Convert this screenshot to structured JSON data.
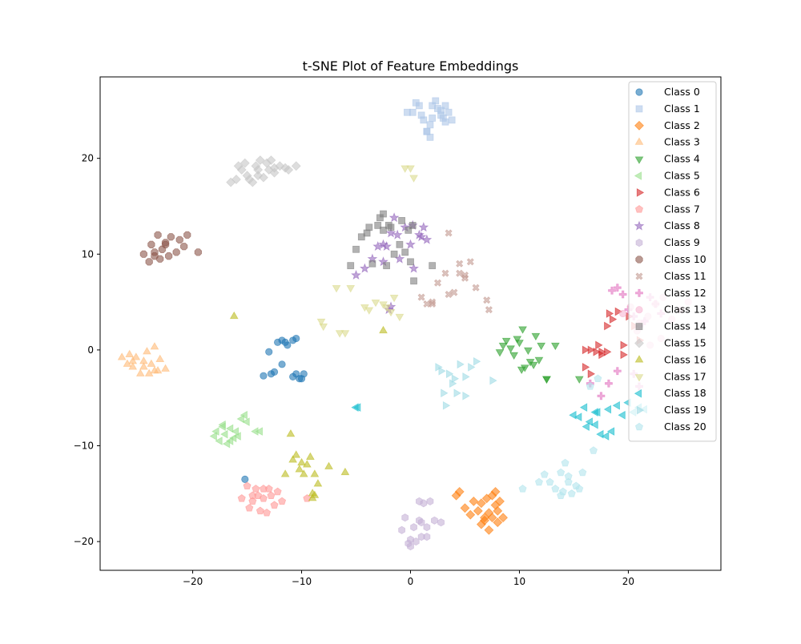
{
  "chart_data": {
    "type": "scatter",
    "title": "t-SNE Plot of Feature Embeddings",
    "xlabel": "",
    "ylabel": "",
    "xlim": [
      -28.5,
      28.5
    ],
    "ylim": [
      -23,
      28.5
    ],
    "xticks": [
      -20,
      -10,
      0,
      10,
      20
    ],
    "yticks": [
      -20,
      -10,
      0,
      10,
      20
    ],
    "grid": false,
    "legend_position": "top-right",
    "series": [
      {
        "name": "Class 0",
        "marker": "circle",
        "color": "#1f77b4",
        "x": [
          -12.8,
          -13.0,
          -12.2,
          -11.8,
          -11.5,
          -11.3,
          -10.8,
          -10.5,
          -13.5,
          -10.5,
          -10.0,
          -9.8,
          -10.8,
          -10.2,
          -12.5,
          -11.8,
          -15.2
        ],
        "y": [
          -2.5,
          -0.2,
          0.8,
          1.0,
          0.8,
          0.5,
          1.0,
          1.2,
          -2.7,
          -2.5,
          -3.0,
          -2.5,
          -2.8,
          -3.0,
          -2.3,
          -1.5,
          -13.5
        ]
      },
      {
        "name": "Class 1",
        "marker": "square",
        "color": "#aec7e8",
        "x": [
          -0.3,
          0.2,
          0.5,
          0.8,
          1.0,
          1.2,
          1.5,
          1.8,
          2.0,
          2.3,
          2.5,
          2.8,
          3.0,
          3.2,
          3.5,
          3.8,
          1.8,
          1.5,
          2.0,
          2.8,
          3.2
        ],
        "y": [
          24.8,
          24.8,
          25.8,
          25.5,
          24.5,
          24.0,
          22.8,
          22.2,
          25.5,
          26.0,
          25.2,
          24.5,
          24.2,
          25.5,
          24.8,
          24.0,
          23.5,
          22.8,
          24.2,
          25.0,
          23.8
        ]
      },
      {
        "name": "Class 2",
        "marker": "diamond",
        "color": "#ff7f0e",
        "x": [
          4.2,
          4.5,
          5.0,
          5.5,
          5.8,
          6.2,
          6.5,
          6.8,
          7.0,
          7.2,
          7.5,
          7.8,
          8.0,
          8.2,
          8.5,
          7.2,
          6.5,
          7.8,
          8.0,
          6.8,
          7.5
        ],
        "y": [
          -15.2,
          -14.8,
          -16.5,
          -17.2,
          -15.8,
          -16.8,
          -18.2,
          -17.5,
          -15.5,
          -18.8,
          -17.5,
          -16.2,
          -18.0,
          -15.8,
          -17.5,
          -17.0,
          -16.0,
          -14.8,
          -16.8,
          -17.8,
          -15.2
        ]
      },
      {
        "name": "Class 3",
        "marker": "triangle-up",
        "color": "#ffbb78",
        "x": [
          -26.5,
          -26.0,
          -25.8,
          -25.5,
          -25.2,
          -24.8,
          -24.5,
          -24.2,
          -24.0,
          -23.8,
          -23.5,
          -23.2,
          -23.0,
          -22.5,
          -25.5,
          -24.5,
          -23.5
        ],
        "y": [
          -0.8,
          -1.5,
          -0.5,
          -1.8,
          -0.8,
          -2.5,
          -1.2,
          -0.2,
          -2.5,
          -1.5,
          0.3,
          -2.2,
          -1.0,
          -2.0,
          -1.2,
          -1.8,
          -2.2
        ]
      },
      {
        "name": "Class 4",
        "marker": "triangle-down",
        "color": "#2ca02c",
        "x": [
          8.2,
          8.5,
          8.8,
          9.2,
          9.5,
          9.8,
          10.0,
          10.3,
          10.5,
          10.8,
          11.0,
          11.3,
          11.5,
          11.8,
          12.0,
          12.5,
          13.3,
          15.5,
          12.5,
          10.2
        ],
        "y": [
          -0.2,
          0.5,
          1.0,
          0.2,
          -0.5,
          1.2,
          0.8,
          2.2,
          -1.8,
          0.0,
          -1.2,
          -1.5,
          1.5,
          -1.0,
          0.5,
          -3.0,
          0.5,
          -3.0,
          -3.0,
          -2.0
        ]
      },
      {
        "name": "Class 5",
        "marker": "triangle-left",
        "color": "#98df8a",
        "x": [
          -18.0,
          -17.8,
          -17.5,
          -17.2,
          -17.0,
          -16.8,
          -16.5,
          -16.2,
          -16.0,
          -15.8,
          -15.5,
          -15.2,
          -15.0,
          -14.2,
          -13.8,
          -16.5,
          -17.2
        ],
        "y": [
          -9.0,
          -8.5,
          -9.5,
          -7.8,
          -8.8,
          -9.8,
          -8.2,
          -9.2,
          -8.5,
          -9.0,
          -7.2,
          -6.8,
          -7.5,
          -8.5,
          -8.5,
          -9.5,
          -8.0
        ]
      },
      {
        "name": "Class 6",
        "marker": "triangle-right",
        "color": "#d62728",
        "x": [
          16.0,
          16.5,
          17.0,
          17.5,
          18.0,
          18.2,
          18.5,
          19.0,
          19.5,
          20.0,
          20.5,
          21.0,
          16.5,
          17.2,
          18.0,
          19.5,
          16.0,
          17.5
        ],
        "y": [
          -1.8,
          0.0,
          -0.2,
          -0.5,
          2.5,
          3.8,
          3.2,
          4.0,
          0.5,
          3.5,
          2.5,
          1.0,
          -2.5,
          0.5,
          -0.2,
          -0.5,
          0.0,
          -0.2
        ]
      },
      {
        "name": "Class 7",
        "marker": "pentagon",
        "color": "#ff9896",
        "x": [
          -15.5,
          -15.0,
          -14.8,
          -14.5,
          -14.2,
          -14.0,
          -13.8,
          -13.5,
          -13.2,
          -13.0,
          -12.8,
          -12.5,
          -12.2,
          -11.8,
          -13.5,
          -14.5,
          -9.5
        ],
        "y": [
          -15.5,
          -14.2,
          -16.5,
          -15.8,
          -14.5,
          -15.2,
          -16.8,
          -15.5,
          -17.0,
          -14.5,
          -15.2,
          -16.2,
          -14.8,
          -15.8,
          -14.5,
          -15.2,
          -15.5
        ]
      },
      {
        "name": "Class 8",
        "marker": "star",
        "color": "#9467bd",
        "x": [
          -5.0,
          -4.2,
          -3.5,
          -3.0,
          -2.5,
          -2.2,
          -1.8,
          -1.5,
          -1.2,
          -1.0,
          -0.5,
          0.0,
          0.3,
          0.8,
          1.0,
          1.2,
          1.5,
          -2.0,
          0.2,
          -1.8,
          -2.5
        ],
        "y": [
          7.8,
          8.5,
          9.5,
          10.8,
          11.0,
          10.8,
          4.5,
          13.8,
          12.0,
          9.5,
          12.8,
          11.0,
          8.5,
          12.0,
          11.8,
          12.8,
          11.5,
          4.2,
          13.0,
          12.2,
          9.2
        ]
      },
      {
        "name": "Class 9",
        "marker": "hexagon",
        "color": "#c5b0d5",
        "x": [
          -0.8,
          -0.5,
          -0.2,
          0.0,
          0.3,
          0.5,
          0.8,
          1.0,
          1.2,
          1.5,
          1.8,
          2.2,
          2.8,
          0.8,
          1.5,
          0.0,
          1.0
        ],
        "y": [
          -18.8,
          -17.5,
          -20.2,
          -19.8,
          -18.5,
          -20.0,
          -17.8,
          -19.5,
          -16.0,
          -18.5,
          -15.8,
          -17.8,
          -18.0,
          -15.8,
          -19.5,
          -20.5,
          -18.0
        ]
      },
      {
        "name": "Class 10",
        "marker": "octagon",
        "color": "#8c564b",
        "x": [
          -24.5,
          -24.0,
          -23.8,
          -23.5,
          -23.2,
          -23.0,
          -22.8,
          -22.5,
          -22.2,
          -22.0,
          -21.5,
          -21.2,
          -20.8,
          -20.5,
          -19.5,
          -23.5,
          -22.5
        ],
        "y": [
          10.0,
          9.2,
          11.0,
          10.2,
          12.0,
          9.5,
          10.5,
          11.2,
          9.8,
          11.8,
          10.2,
          11.5,
          10.8,
          12.0,
          10.2,
          9.8,
          11.0
        ]
      },
      {
        "name": "Class 11",
        "marker": "x",
        "color": "#c49c94",
        "x": [
          1.0,
          1.5,
          2.0,
          2.5,
          3.2,
          3.5,
          4.0,
          4.5,
          5.0,
          5.5,
          6.0,
          7.0,
          7.2,
          3.5,
          4.5,
          5.0,
          2.0
        ],
        "y": [
          5.5,
          4.8,
          4.8,
          7.0,
          8.0,
          12.2,
          6.0,
          9.0,
          7.8,
          9.2,
          6.5,
          5.2,
          4.2,
          5.8,
          8.0,
          7.5,
          5.0
        ]
      },
      {
        "name": "Class 12",
        "marker": "plus",
        "color": "#e377c2",
        "x": [
          18.5,
          19.0,
          19.5,
          20.0,
          20.5,
          21.0,
          21.5,
          22.0,
          22.5,
          23.0,
          19.0,
          20.5,
          17.5,
          18.2,
          16.5,
          21.0
        ],
        "y": [
          6.2,
          6.5,
          5.8,
          4.2,
          3.5,
          2.5,
          3.0,
          5.5,
          4.8,
          3.8,
          -2.2,
          -2.5,
          -4.8,
          -3.5,
          -3.5,
          -3.8
        ]
      },
      {
        "name": "Class 13",
        "marker": "circle",
        "color": "#f7b6d2",
        "x": [
          19.5,
          20.2,
          21.0,
          21.8,
          22.5,
          23.2,
          24.0,
          24.8,
          25.5,
          22.0,
          23.0,
          20.8
        ],
        "y": [
          3.8,
          4.5,
          2.8,
          3.5,
          4.8,
          5.5,
          3.2,
          4.2,
          5.0,
          0.5,
          1.2,
          2.0
        ]
      },
      {
        "name": "Class 14",
        "marker": "square",
        "color": "#7f7f7f",
        "x": [
          -5.5,
          -5.0,
          -4.5,
          -3.8,
          -3.5,
          -3.0,
          -2.8,
          -2.5,
          -2.2,
          -2.0,
          -1.5,
          -1.0,
          -0.8,
          -0.5,
          -0.2,
          0.0,
          0.3,
          -1.8,
          -4.0,
          -2.5,
          2.0,
          0.2
        ],
        "y": [
          8.8,
          10.5,
          11.8,
          12.8,
          9.0,
          13.0,
          13.8,
          14.2,
          8.8,
          13.0,
          10.0,
          11.0,
          13.5,
          10.2,
          12.5,
          9.2,
          7.2,
          12.8,
          12.2,
          12.5,
          8.8,
          13.0
        ]
      },
      {
        "name": "Class 15",
        "marker": "diamond",
        "color": "#c7c7c7",
        "x": [
          -16.0,
          -15.8,
          -15.5,
          -15.2,
          -15.0,
          -14.8,
          -14.5,
          -14.2,
          -14.0,
          -13.8,
          -13.5,
          -13.2,
          -13.0,
          -12.8,
          -12.5,
          -12.0,
          -11.5,
          -11.2,
          -10.5,
          -16.5,
          -14.0,
          -12.5
        ],
        "y": [
          17.8,
          19.2,
          18.8,
          19.5,
          18.2,
          17.8,
          17.5,
          19.2,
          18.8,
          19.8,
          18.0,
          19.5,
          18.8,
          19.8,
          18.5,
          19.2,
          19.0,
          18.8,
          19.2,
          17.5,
          18.2,
          19.0
        ]
      },
      {
        "name": "Class 16",
        "marker": "triangle-up",
        "color": "#bcbd22",
        "x": [
          -16.2,
          -11.0,
          -10.8,
          -10.5,
          -10.2,
          -10.0,
          -9.8,
          -9.5,
          -9.2,
          -9.0,
          -8.8,
          -8.5,
          -7.5,
          -6.0,
          -9.0,
          -8.8,
          -2.5,
          -11.5
        ],
        "y": [
          3.5,
          -8.8,
          -11.5,
          -11.0,
          -12.5,
          -11.8,
          -13.0,
          -12.0,
          -11.2,
          -15.5,
          -13.0,
          -14.0,
          -12.2,
          -12.8,
          -15.0,
          -15.2,
          2.0,
          -13.0
        ]
      },
      {
        "name": "Class 17",
        "marker": "triangle-down",
        "color": "#dbdb8d",
        "x": [
          -8.2,
          -8.0,
          -6.5,
          -6.0,
          -5.5,
          -4.2,
          -3.8,
          -3.2,
          -2.5,
          -2.2,
          -1.8,
          -1.5,
          -1.0,
          -0.5,
          0.0,
          0.3,
          -6.8
        ],
        "y": [
          3.0,
          2.5,
          1.8,
          1.8,
          6.5,
          4.5,
          4.2,
          5.0,
          4.8,
          4.5,
          4.0,
          5.5,
          3.5,
          19.0,
          19.0,
          18.0,
          6.5
        ]
      },
      {
        "name": "Class 18",
        "marker": "triangle-left",
        "color": "#17becf",
        "x": [
          -4.8,
          -5.0,
          15.0,
          15.5,
          16.0,
          16.5,
          17.0,
          17.2,
          17.5,
          18.0,
          18.2,
          18.5,
          19.0,
          19.5,
          20.0,
          20.5,
          21.0,
          16.2,
          17.0,
          21.5
        ],
        "y": [
          -6.0,
          -6.0,
          -6.8,
          -7.0,
          -6.0,
          -7.5,
          -7.8,
          -6.5,
          -8.8,
          -9.0,
          -6.2,
          -8.5,
          -5.8,
          -6.8,
          -5.5,
          -6.5,
          -6.0,
          -8.0,
          -6.5,
          -6.2
        ]
      },
      {
        "name": "Class 19",
        "marker": "triangle-right",
        "color": "#9edae5",
        "x": [
          2.5,
          2.8,
          3.2,
          3.5,
          3.8,
          4.2,
          4.5,
          5.0,
          5.5,
          6.0,
          7.5,
          4.0,
          3.0,
          5.0
        ],
        "y": [
          -1.8,
          -2.2,
          -5.8,
          -2.5,
          -3.5,
          -4.5,
          -1.5,
          -4.8,
          -1.8,
          -1.2,
          -3.2,
          -3.0,
          -4.5,
          -2.8
        ]
      },
      {
        "name": "Class 20",
        "marker": "pentagon",
        "color": "#b3e5ec",
        "x": [
          10.3,
          11.8,
          12.3,
          12.8,
          13.3,
          13.8,
          14.0,
          14.2,
          14.5,
          14.8,
          15.2,
          15.5,
          15.8,
          16.8,
          17.2,
          16.5,
          14.5,
          13.8
        ],
        "y": [
          -14.5,
          -13.8,
          -13.0,
          -13.8,
          -14.5,
          -12.8,
          -14.8,
          -11.8,
          -13.8,
          -15.0,
          -14.2,
          -14.5,
          -12.8,
          -10.5,
          -3.0,
          -3.8,
          -13.2,
          -15.2
        ]
      }
    ]
  }
}
